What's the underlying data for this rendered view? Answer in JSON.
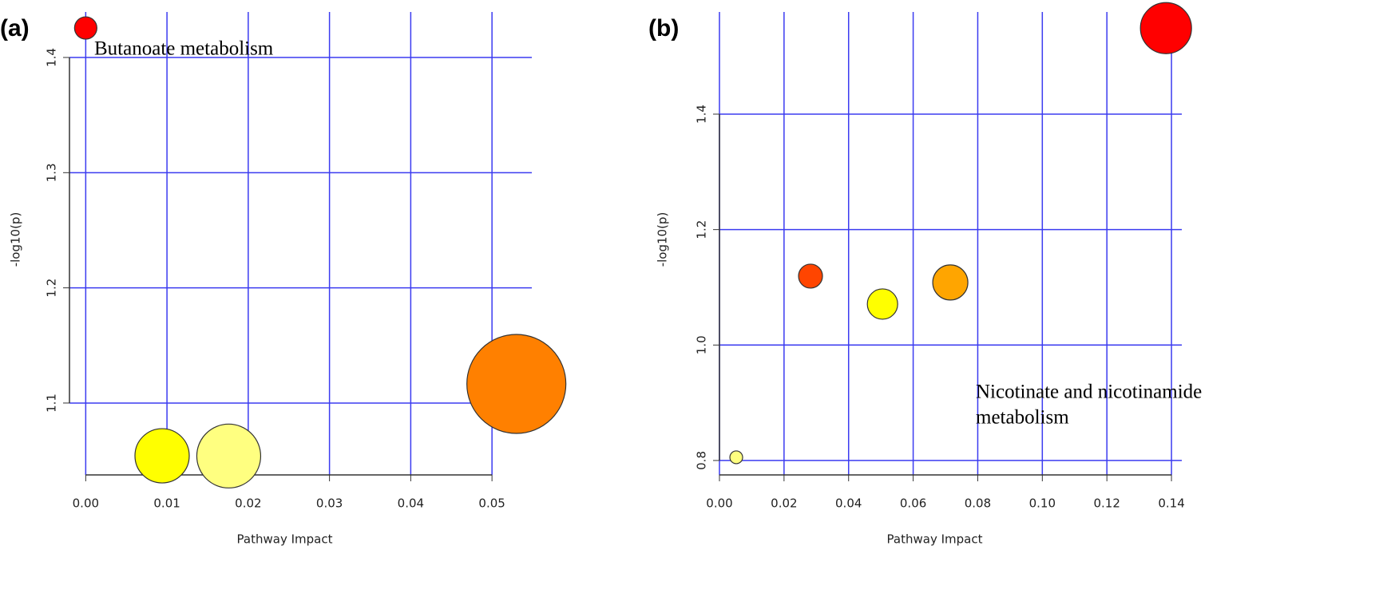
{
  "chart_data": [
    {
      "type": "bubble",
      "panel_label": "(a)",
      "x_label": "Pathway Impact",
      "y_label": "-log10(p)",
      "annotation": [
        "Butanoate metabolism"
      ],
      "x": [
        0.0,
        0.0094,
        0.0176,
        0.053
      ],
      "values": [
        1.4256,
        1.0542,
        1.054,
        1.1166
      ],
      "sizes": [
        14,
        34,
        40,
        62
      ],
      "colors": [
        "#ff0000",
        "#ffff00",
        "#ffff80",
        "#ff8000"
      ],
      "xlim": [
        -0.002,
        0.0549
      ],
      "ylim": [
        1.0376,
        1.4395
      ],
      "xticks": [
        {
          "value": 0,
          "label": "0.00"
        },
        {
          "value": 0.01,
          "label": "0.01"
        },
        {
          "value": 0.02,
          "label": "0.02"
        },
        {
          "value": 0.03,
          "label": "0.03"
        },
        {
          "value": 0.04,
          "label": "0.04"
        },
        {
          "value": 0.05,
          "label": "0.05"
        }
      ],
      "yticks": [
        1.1,
        1.2,
        1.3,
        1.4
      ],
      "grid": true,
      "grid_color": "#3b3bf0"
    },
    {
      "type": "bubble",
      "panel_label": "(b)",
      "x_label": "Pathway Impact",
      "y_label": "-log10(p)",
      "annotation": [
        "Nicotinate and nicotinamide",
        "metabolism"
      ],
      "x": [
        0.1383,
        0.0282,
        0.0505,
        0.0715,
        0.0052
      ],
      "values": [
        1.549,
        1.1194,
        1.071,
        1.1084,
        0.8055
      ],
      "sizes": [
        32,
        15,
        19,
        22,
        8
      ],
      "colors": [
        "#ff0000",
        "#ff4500",
        "#ffff00",
        "#ffa500",
        "#ffff80"
      ],
      "xlim": [
        0,
        0.1432
      ],
      "ylim": [
        0.775,
        1.577
      ],
      "xticks": [
        {
          "value": 0,
          "label": "0.00"
        },
        {
          "value": 0.02,
          "label": "0.02"
        },
        {
          "value": 0.04,
          "label": "0.04"
        },
        {
          "value": 0.06,
          "label": "0.06"
        },
        {
          "value": 0.08,
          "label": "0.08"
        },
        {
          "value": 0.1,
          "label": "0.10"
        },
        {
          "value": 0.12,
          "label": "0.12"
        },
        {
          "value": 0.14,
          "label": "0.14"
        }
      ],
      "yticks": [
        0.8,
        {
          "value": 1,
          "label": "1.0"
        },
        1.2,
        1.4
      ],
      "grid": true,
      "grid_color": "#3b3bf0"
    }
  ]
}
